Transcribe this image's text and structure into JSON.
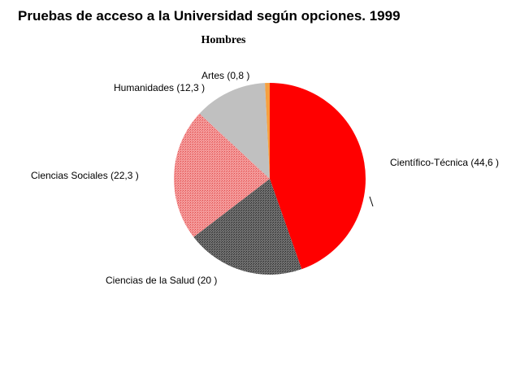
{
  "chart_data": {
    "type": "pie",
    "title": "Pruebas de acceso a la Universidad según opciones. 1999",
    "subtitle": "Hombres",
    "slices": [
      {
        "label": "Científico-Técnica (44,6 )",
        "value": 44.6,
        "color": "#ff0000",
        "pattern": "solid"
      },
      {
        "label": "Ciencias de la Salud (20 )",
        "value": 20.0,
        "color": "#5a5a5a",
        "pattern": "dots"
      },
      {
        "label": "Ciencias Sociales (22,3 )",
        "value": 22.3,
        "color": "#f28a8a",
        "pattern": "dots"
      },
      {
        "label": "Humanidades (12,3 )",
        "value": 12.3,
        "color": "#c0c0c0",
        "pattern": "solid"
      },
      {
        "label": "Artes (0,8 )",
        "value": 0.8,
        "color": "#f5a040",
        "pattern": "solid"
      }
    ]
  }
}
